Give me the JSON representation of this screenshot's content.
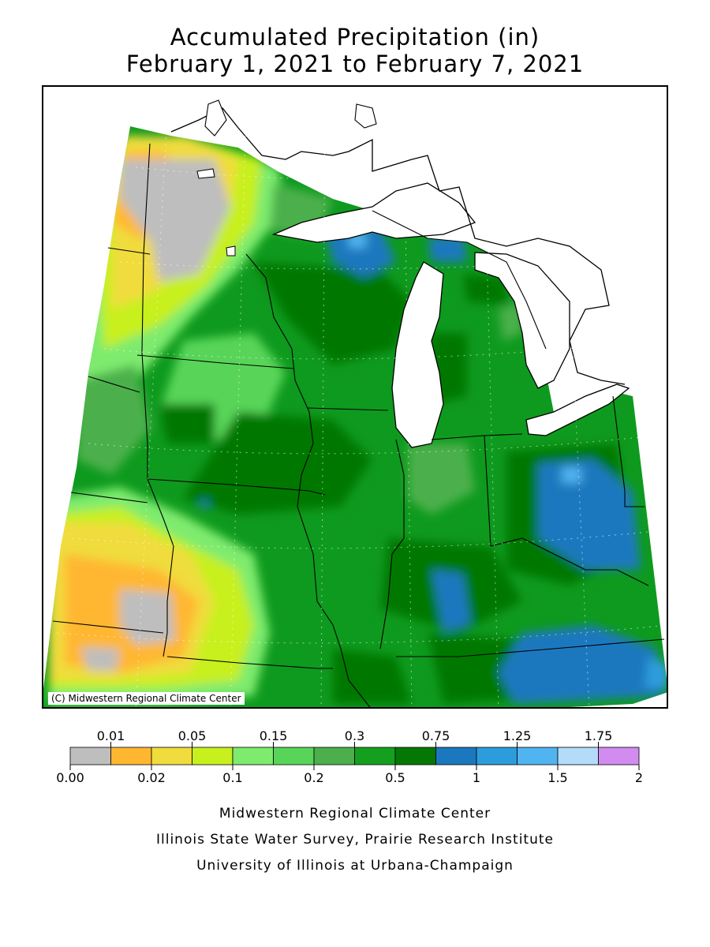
{
  "title": {
    "line1": "Accumulated Precipitation (in)",
    "line2": "February 1, 2021 to February 7, 2021"
  },
  "map": {
    "credit": "(C) Midwestern Regional Climate Center",
    "background_color": "#0E9A1E"
  },
  "legend": {
    "colors": [
      "#BEBEBE",
      "#FFB732",
      "#F0DC3C",
      "#C8F01E",
      "#7EEB6E",
      "#58D558",
      "#4BB04B",
      "#14A01E",
      "#047804",
      "#1B78BE",
      "#2D9CDC",
      "#50B4F0",
      "#B4DCFA",
      "#D28CF0"
    ],
    "top_labels": [
      "0.01",
      "0.05",
      "0.15",
      "0.3",
      "0.75",
      "1.25",
      "1.75"
    ],
    "bottom_labels": [
      "0.00",
      "0.02",
      "0.1",
      "0.2",
      "0.5",
      "1",
      "1.5",
      "2"
    ]
  },
  "footer": {
    "line1": "Midwestern Regional Climate Center",
    "line2": "Illinois State Water Survey, Prairie Research Institute",
    "line3": "University of Illinois at Urbana-Champaign"
  }
}
